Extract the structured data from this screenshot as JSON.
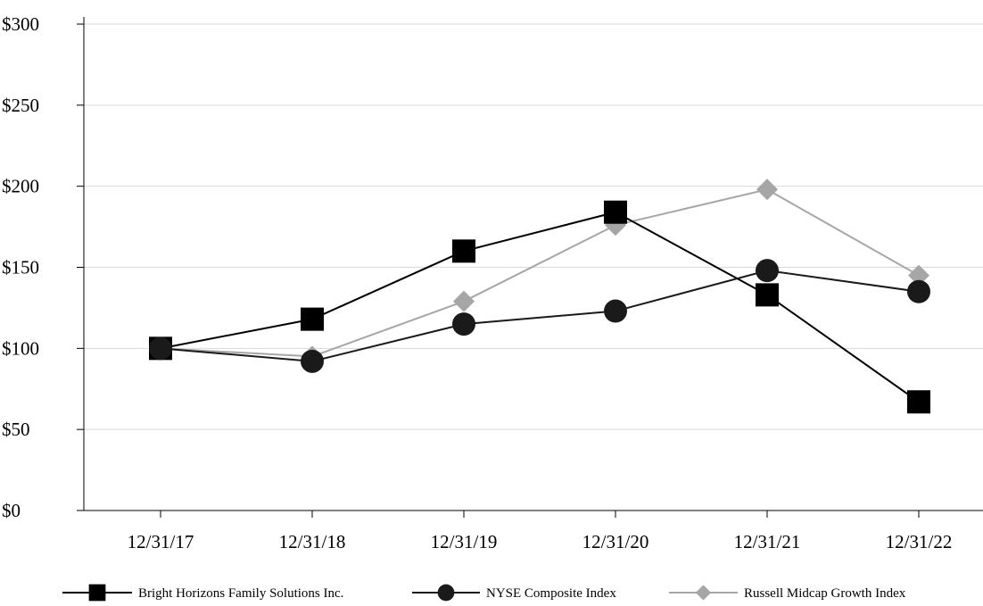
{
  "chart_data": {
    "type": "line",
    "title": "",
    "xlabel": "",
    "ylabel": "",
    "categories": [
      "12/31/17",
      "12/31/18",
      "12/31/19",
      "12/31/20",
      "12/31/21",
      "12/31/22"
    ],
    "ylim": [
      0,
      300
    ],
    "y_ticks": [
      0,
      50,
      100,
      150,
      200,
      250,
      300
    ],
    "y_tick_labels": [
      "$0",
      "$50",
      "$100",
      "$150",
      "$200",
      "$250",
      "$300"
    ],
    "grid": true,
    "legend_position": "bottom",
    "series": [
      {
        "name": "Bright Horizons Family Solutions Inc.",
        "values": [
          100,
          118,
          160,
          184,
          133,
          67
        ],
        "marker": "square",
        "color": "#000000"
      },
      {
        "name": "NYSE Composite Index",
        "values": [
          100,
          92,
          115,
          123,
          148,
          135
        ],
        "marker": "circle",
        "color": "#1a1a1a"
      },
      {
        "name": "Russell Midcap Growth Index",
        "values": [
          100,
          95,
          129,
          176,
          198,
          145
        ],
        "marker": "diamond",
        "color": "#a6a6a6"
      }
    ]
  }
}
